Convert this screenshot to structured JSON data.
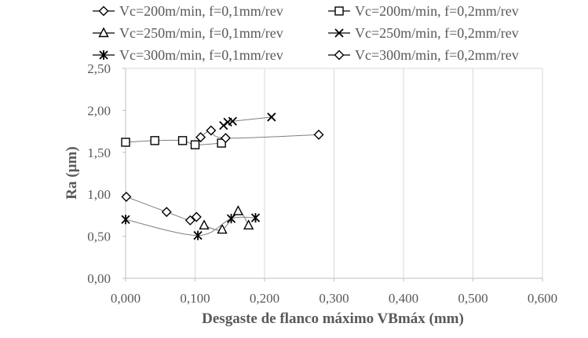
{
  "chart_data": {
    "type": "scatter",
    "title": "",
    "xlabel": "Desgaste de flanco máximo VBmáx (mm)",
    "ylabel": "Ra (µm)",
    "xlim": [
      0,
      0.6
    ],
    "ylim": [
      0,
      2.5
    ],
    "x_ticks": [
      "0,000",
      "0,100",
      "0,200",
      "0,300",
      "0,400",
      "0,500",
      "0,600"
    ],
    "y_ticks": [
      "0,00",
      "0,50",
      "1,00",
      "1,50",
      "2,00",
      "2,50"
    ],
    "x_tick_values": [
      0,
      0.1,
      0.2,
      0.3,
      0.4,
      0.5,
      0.6
    ],
    "y_tick_values": [
      0,
      0.5,
      1.0,
      1.5,
      2.0,
      2.5
    ],
    "grid": "vertical",
    "legend_position": "top",
    "series": [
      {
        "name": "Vc=200m/min, f=0,1mm/rev",
        "marker": "diamond",
        "points": [
          [
            0.001,
            0.97
          ],
          [
            0.059,
            0.79
          ],
          [
            0.093,
            0.69
          ],
          [
            0.102,
            0.73
          ]
        ]
      },
      {
        "name": "Vc=200m/min, f=0,2mm/rev",
        "marker": "square",
        "points": [
          [
            0.0,
            1.62
          ],
          [
            0.042,
            1.64
          ],
          [
            0.082,
            1.64
          ],
          [
            0.1,
            1.59
          ],
          [
            0.138,
            1.61
          ]
        ]
      },
      {
        "name": "Vc=250m/min, f=0,1mm/rev",
        "marker": "triangle",
        "points": [
          [
            0.113,
            0.63
          ],
          [
            0.139,
            0.58
          ],
          [
            0.162,
            0.8
          ],
          [
            0.177,
            0.63
          ]
        ]
      },
      {
        "name": "Vc=250m/min, f=0,2mm/rev",
        "marker": "x",
        "points": [
          [
            0.141,
            1.82
          ],
          [
            0.147,
            1.86
          ],
          [
            0.154,
            1.87
          ],
          [
            0.21,
            1.92
          ]
        ]
      },
      {
        "name": "Vc=300m/min, f=0,1mm/rev",
        "marker": "star",
        "points": [
          [
            0.0,
            0.7
          ],
          [
            0.104,
            0.51
          ],
          [
            0.152,
            0.71
          ],
          [
            0.187,
            0.72
          ]
        ]
      },
      {
        "name": "Vc=300m/min, f=0,2mm/rev",
        "marker": "diamond",
        "points": [
          [
            0.108,
            1.68
          ],
          [
            0.123,
            1.76
          ],
          [
            0.144,
            1.67
          ],
          [
            0.278,
            1.71
          ]
        ]
      }
    ]
  }
}
